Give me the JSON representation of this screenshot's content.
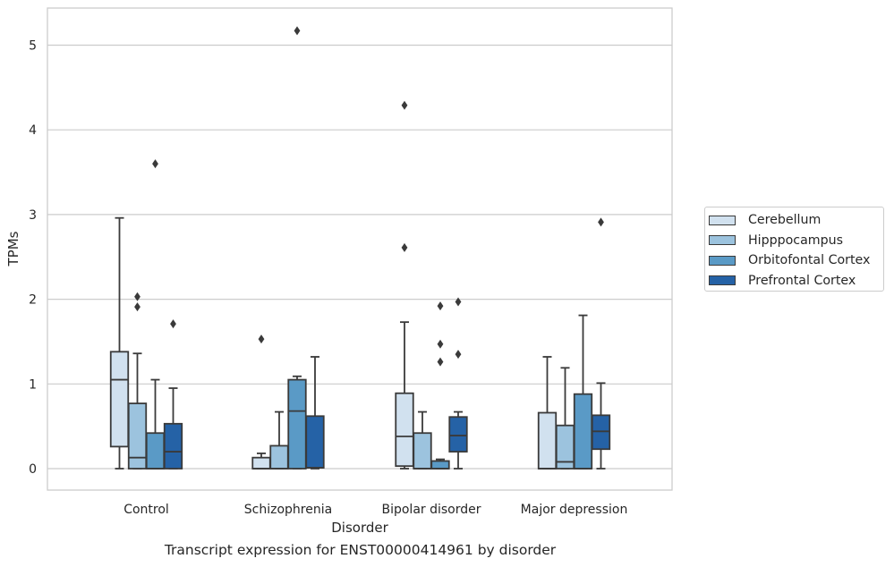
{
  "caption": "Transcript expression for ENST00000414961 by disorder",
  "chart_data": {
    "type": "boxplot",
    "xlabel": "Disorder",
    "ylabel": "TPMs",
    "ylim": [
      -0.25,
      5.4
    ],
    "yticks": [
      0,
      1,
      2,
      3,
      4,
      5
    ],
    "grid": true,
    "legend_position": "right",
    "categories": [
      "Control",
      "Schizophrenia",
      "Bipolar disorder",
      "Major depression"
    ],
    "series": [
      {
        "name": "Cerebellum",
        "color": "#d1e1ef",
        "boxes": [
          {
            "whislo": 0,
            "q1": 0.26,
            "med": 1.05,
            "q3": 1.38,
            "whishi": 2.96,
            "fliers": []
          },
          {
            "whislo": 0,
            "q1": 0,
            "med": 0,
            "q3": 0.13,
            "whishi": 0.18,
            "fliers": [
              1.53
            ]
          },
          {
            "whislo": 0,
            "q1": 0.03,
            "med": 0.38,
            "q3": 0.89,
            "whishi": 1.73,
            "fliers": [
              2.61,
              4.29
            ]
          },
          {
            "whislo": 0,
            "q1": 0,
            "med": 0,
            "q3": 0.66,
            "whishi": 1.32,
            "fliers": []
          }
        ]
      },
      {
        "name": "Hipppocampus",
        "color": "#9cc3de",
        "boxes": [
          {
            "whislo": 0,
            "q1": 0,
            "med": 0.13,
            "q3": 0.77,
            "whishi": 1.36,
            "fliers": [
              1.91,
              2.03
            ]
          },
          {
            "whislo": 0,
            "q1": 0,
            "med": 0,
            "q3": 0.27,
            "whishi": 0.67,
            "fliers": []
          },
          {
            "whislo": 0,
            "q1": 0,
            "med": 0,
            "q3": 0.42,
            "whishi": 0.67,
            "fliers": []
          },
          {
            "whislo": 0,
            "q1": 0,
            "med": 0.08,
            "q3": 0.51,
            "whishi": 1.19,
            "fliers": []
          }
        ]
      },
      {
        "name": "Orbitofontal Cortex",
        "color": "#5a9ac6",
        "boxes": [
          {
            "whislo": 0,
            "q1": 0,
            "med": 0,
            "q3": 0.42,
            "whishi": 1.05,
            "fliers": [
              3.6
            ]
          },
          {
            "whislo": 0,
            "q1": 0,
            "med": 0.68,
            "q3": 1.05,
            "whishi": 1.09,
            "fliers": [
              5.17
            ]
          },
          {
            "whislo": 0,
            "q1": 0,
            "med": 0,
            "q3": 0.09,
            "whishi": 0.11,
            "fliers": [
              1.26,
              1.47,
              1.92
            ]
          },
          {
            "whislo": 0,
            "q1": 0,
            "med": 0,
            "q3": 0.88,
            "whishi": 1.81,
            "fliers": []
          }
        ]
      },
      {
        "name": "Prefrontal Cortex",
        "color": "#2562a6",
        "boxes": [
          {
            "whislo": 0,
            "q1": 0,
            "med": 0.2,
            "q3": 0.53,
            "whishi": 0.95,
            "fliers": [
              1.71
            ]
          },
          {
            "whislo": 0,
            "q1": 0.01,
            "med": 0.01,
            "q3": 0.62,
            "whishi": 1.32,
            "fliers": []
          },
          {
            "whislo": 0,
            "q1": 0.2,
            "med": 0.39,
            "q3": 0.61,
            "whishi": 0.67,
            "fliers": [
              1.35,
              1.97
            ]
          },
          {
            "whislo": 0,
            "q1": 0.23,
            "med": 0.44,
            "q3": 0.63,
            "whishi": 1.01,
            "fliers": [
              2.91
            ]
          }
        ]
      }
    ]
  }
}
